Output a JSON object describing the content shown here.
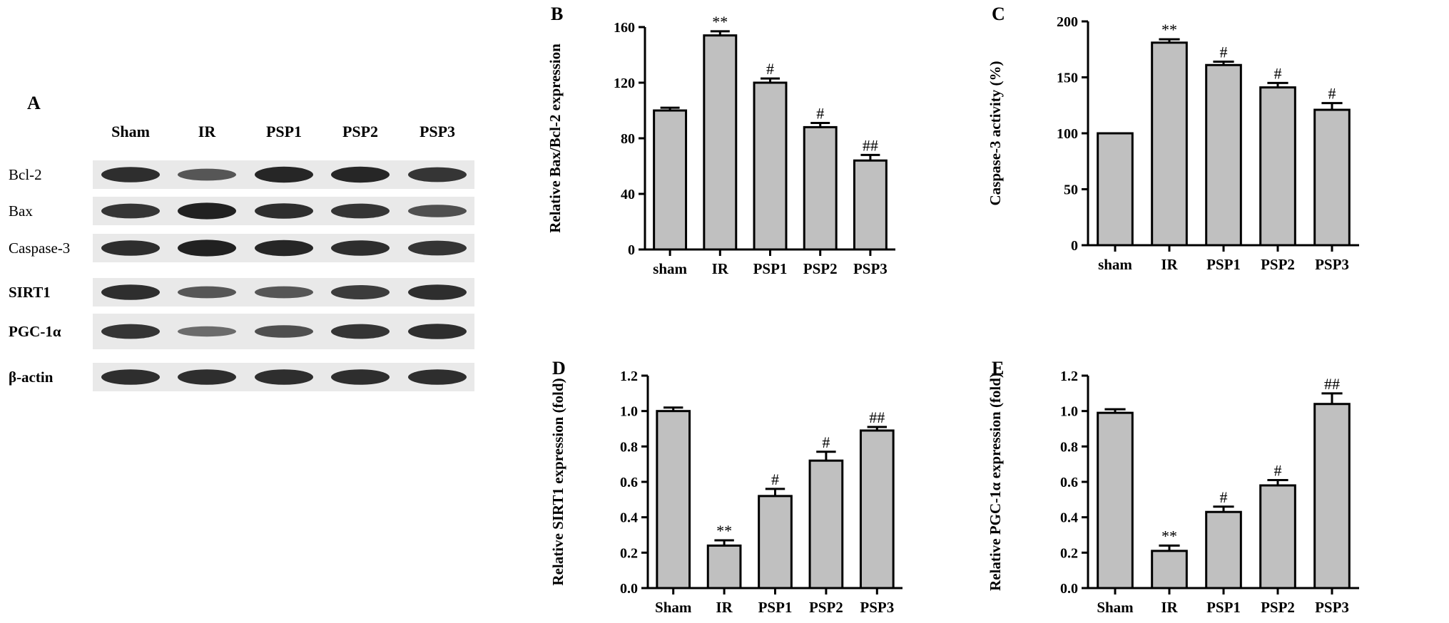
{
  "blot": {
    "letter": "A",
    "lanes": [
      "Sham",
      "IR",
      "PSP1",
      "PSP2",
      "PSP3"
    ],
    "rows": [
      {
        "label": "Bcl-2",
        "bold": false,
        "intensity": [
          0.85,
          0.55,
          0.9,
          0.9,
          0.8
        ]
      },
      {
        "label": "Bax",
        "bold": false,
        "intensity": [
          0.8,
          0.95,
          0.85,
          0.8,
          0.6
        ]
      },
      {
        "label": "Caspase-3",
        "bold": false,
        "intensity": [
          0.85,
          0.95,
          0.9,
          0.85,
          0.8
        ]
      },
      {
        "label": "SIRT1",
        "bold": true,
        "intensity": [
          0.85,
          0.55,
          0.55,
          0.75,
          0.85
        ]
      },
      {
        "label": "PGC-1α",
        "bold": true,
        "intensity": [
          0.8,
          0.4,
          0.6,
          0.8,
          0.85
        ]
      },
      {
        "label": "β-actin",
        "bold": true,
        "intensity": [
          0.85,
          0.85,
          0.85,
          0.85,
          0.85
        ]
      }
    ]
  },
  "chart_data": [
    {
      "letter": "B",
      "type": "bar",
      "categories": [
        "sham",
        "IR",
        "PSP1",
        "PSP2",
        "PSP3"
      ],
      "values": [
        100,
        154,
        120,
        88,
        64
      ],
      "errors": [
        2,
        3,
        3,
        3,
        4
      ],
      "annotations": [
        "",
        "**",
        "#",
        "#",
        "##"
      ],
      "ylabel": "Relative Bax/Bcl-2 expression",
      "ylim": [
        0,
        160
      ],
      "yticks": [
        0,
        40,
        80,
        120,
        160
      ],
      "ytick_labels": [
        "0",
        "40",
        "80",
        "120",
        "160"
      ]
    },
    {
      "letter": "C",
      "type": "bar",
      "categories": [
        "sham",
        "IR",
        "PSP1",
        "PSP2",
        "PSP3"
      ],
      "values": [
        100,
        181,
        161,
        141,
        121
      ],
      "errors": [
        0,
        3,
        3,
        4,
        6
      ],
      "annotations": [
        "",
        "**",
        "#",
        "#",
        "#"
      ],
      "ylabel": "Caspase-3 activity (%)",
      "ylim": [
        0,
        200
      ],
      "yticks": [
        0,
        50,
        100,
        150,
        200
      ],
      "ytick_labels": [
        "0",
        "50",
        "100",
        "150",
        "200"
      ]
    },
    {
      "letter": "D",
      "type": "bar",
      "categories": [
        "Sham",
        "IR",
        "PSP1",
        "PSP2",
        "PSP3"
      ],
      "values": [
        1.0,
        0.24,
        0.52,
        0.72,
        0.89
      ],
      "errors": [
        0.02,
        0.03,
        0.04,
        0.05,
        0.02
      ],
      "annotations": [
        "",
        "**",
        "#",
        "#",
        "##"
      ],
      "ylabel": "Relative SIRT1 expression (fold)",
      "ylim": [
        0,
        1.2
      ],
      "yticks": [
        0,
        0.2,
        0.4,
        0.6,
        0.8,
        1.0,
        1.2
      ],
      "ytick_labels": [
        "0.0",
        "0.2",
        "0.4",
        "0.6",
        "0.8",
        "1.0",
        "1.2"
      ]
    },
    {
      "letter": "E",
      "type": "bar",
      "categories": [
        "Sham",
        "IR",
        "PSP1",
        "PSP2",
        "PSP3"
      ],
      "values": [
        0.99,
        0.21,
        0.43,
        0.58,
        1.04
      ],
      "errors": [
        0.02,
        0.03,
        0.03,
        0.03,
        0.06
      ],
      "annotations": [
        "",
        "**",
        "#",
        "#",
        "##"
      ],
      "ylabel": "Relative PGC-1α expression (fold)",
      "ylim": [
        0,
        1.2
      ],
      "yticks": [
        0,
        0.2,
        0.4,
        0.6,
        0.8,
        1.0,
        1.2
      ],
      "ytick_labels": [
        "0.0",
        "0.2",
        "0.4",
        "0.6",
        "0.8",
        "1.0",
        "1.2"
      ]
    }
  ],
  "colors": {
    "bar_fill": "#c0c0c0",
    "bar_stroke": "#000000",
    "band": "#1a1a1a",
    "blot_background": "#e9e9e9"
  }
}
